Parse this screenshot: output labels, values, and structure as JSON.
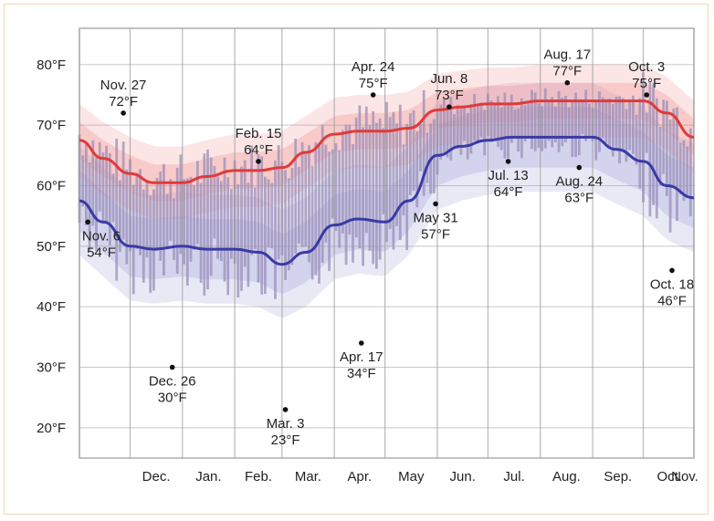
{
  "chart_data": {
    "type": "line",
    "title": "",
    "xlabel": "",
    "ylabel": "",
    "ylim": [
      15,
      86
    ],
    "grid": true,
    "y_ticks": [
      {
        "value": 20,
        "label": "20°F"
      },
      {
        "value": 30,
        "label": "30°F"
      },
      {
        "value": 40,
        "label": "40°F"
      },
      {
        "value": 50,
        "label": "50°F"
      },
      {
        "value": 60,
        "label": "60°F"
      },
      {
        "value": 70,
        "label": "70°F"
      },
      {
        "value": 80,
        "label": "80°F"
      }
    ],
    "x_ticks": [
      "Dec.",
      "Jan.",
      "Feb.",
      "Mar.",
      "Apr.",
      "May",
      "Jun.",
      "Jul.",
      "Aug.",
      "Sep.",
      "Oct.",
      "Nov."
    ],
    "x_months": [
      "Nov.",
      "Dec.",
      "Jan.",
      "Feb.",
      "Mar.",
      "Apr.",
      "May",
      "Jun.",
      "Jul.",
      "Aug.",
      "Sep.",
      "Oct.",
      "Nov."
    ],
    "series": [
      {
        "role": "average-high",
        "color": "#e03a3a",
        "points": [
          [
            "Nov. 1",
            67.5
          ],
          [
            "Nov. 15",
            64.5
          ],
          [
            "Dec. 1",
            62
          ],
          [
            "Dec. 15",
            60.5
          ],
          [
            "Jan. 1",
            60.5
          ],
          [
            "Jan. 15",
            61.5
          ],
          [
            "Feb. 1",
            62.5
          ],
          [
            "Feb. 15",
            62.5
          ],
          [
            "Mar. 1",
            63
          ],
          [
            "Mar. 15",
            65.5
          ],
          [
            "Apr. 1",
            68.5
          ],
          [
            "Apr. 15",
            69
          ],
          [
            "May 1",
            69
          ],
          [
            "May 15",
            69.5
          ],
          [
            "Jun. 1",
            72.5
          ],
          [
            "Jun. 15",
            73
          ],
          [
            "Jul. 1",
            73.5
          ],
          [
            "Jul. 15",
            73.5
          ],
          [
            "Aug. 1",
            74
          ],
          [
            "Aug. 15",
            74
          ],
          [
            "Sep. 1",
            74
          ],
          [
            "Sep. 15",
            74
          ],
          [
            "Oct. 1",
            74
          ],
          [
            "Oct. 15",
            72
          ],
          [
            "Oct. 31",
            68
          ]
        ]
      },
      {
        "role": "average-low",
        "color": "#3a3aa6",
        "points": [
          [
            "Nov. 1",
            57.5
          ],
          [
            "Nov. 15",
            54
          ],
          [
            "Dec. 1",
            50
          ],
          [
            "Dec. 15",
            49.5
          ],
          [
            "Jan. 1",
            50
          ],
          [
            "Jan. 15",
            49.5
          ],
          [
            "Feb. 1",
            49.5
          ],
          [
            "Feb. 15",
            49
          ],
          [
            "Mar. 1",
            47
          ],
          [
            "Mar. 15",
            49
          ],
          [
            "Apr. 1",
            53.5
          ],
          [
            "Apr. 15",
            54.5
          ],
          [
            "May 1",
            54
          ],
          [
            "May 15",
            57.5
          ],
          [
            "Jun. 1",
            65
          ],
          [
            "Jun. 15",
            66.5
          ],
          [
            "Jul. 1",
            67.5
          ],
          [
            "Jul. 15",
            68
          ],
          [
            "Aug. 1",
            68
          ],
          [
            "Aug. 15",
            68
          ],
          [
            "Sep. 1",
            68
          ],
          [
            "Sep. 15",
            66
          ],
          [
            "Oct. 1",
            64
          ],
          [
            "Oct. 15",
            60
          ],
          [
            "Oct. 31",
            58
          ]
        ]
      }
    ],
    "annotations": [
      {
        "date": "Nov. 6",
        "value": 54,
        "label": "Nov. 6",
        "label2": "54°F",
        "pos": "below"
      },
      {
        "date": "Nov. 27",
        "value": 72,
        "label": "Nov. 27",
        "label2": "72°F",
        "pos": "above"
      },
      {
        "date": "Dec. 26",
        "value": 30,
        "label": "Dec. 26",
        "label2": "30°F",
        "pos": "below"
      },
      {
        "date": "Feb. 15",
        "value": 64,
        "label": "Feb. 15",
        "label2": "64°F",
        "pos": "above"
      },
      {
        "date": "Mar. 3",
        "value": 23,
        "label": "Mar. 3",
        "label2": "23°F",
        "pos": "below"
      },
      {
        "date": "Apr. 17",
        "value": 34,
        "label": "Apr. 17",
        "label2": "34°F",
        "pos": "below"
      },
      {
        "date": "Apr. 24",
        "value": 75,
        "label": "Apr. 24",
        "label2": "75°F",
        "pos": "above"
      },
      {
        "date": "May 31",
        "value": 57,
        "label": "May 31",
        "label2": "57°F",
        "pos": "below"
      },
      {
        "date": "Jun. 8",
        "value": 73,
        "label": "Jun. 8",
        "label2": "73°F",
        "pos": "above"
      },
      {
        "date": "Jul. 13",
        "value": 64,
        "label": "Jul. 13",
        "label2": "64°F",
        "pos": "below"
      },
      {
        "date": "Aug. 17",
        "value": 77,
        "label": "Aug. 17",
        "label2": "77°F",
        "pos": "above"
      },
      {
        "date": "Aug. 24",
        "value": 63,
        "label": "Aug. 24",
        "label2": "63°F",
        "pos": "below"
      },
      {
        "date": "Oct. 3",
        "value": 75,
        "label": "Oct. 3",
        "label2": "75°F",
        "pos": "above"
      },
      {
        "date": "Oct. 18",
        "value": 46,
        "label": "Oct. 18",
        "label2": "46°F",
        "pos": "below"
      }
    ],
    "colors": {
      "high_line": "#e03a3a",
      "low_line": "#3a3aa6",
      "high_band": "#f28a8a",
      "low_band": "#9a9ad6",
      "daily_bar": "#9a8fb8",
      "grid": "#9a9a9a",
      "frame": "#ecd9b5"
    }
  }
}
